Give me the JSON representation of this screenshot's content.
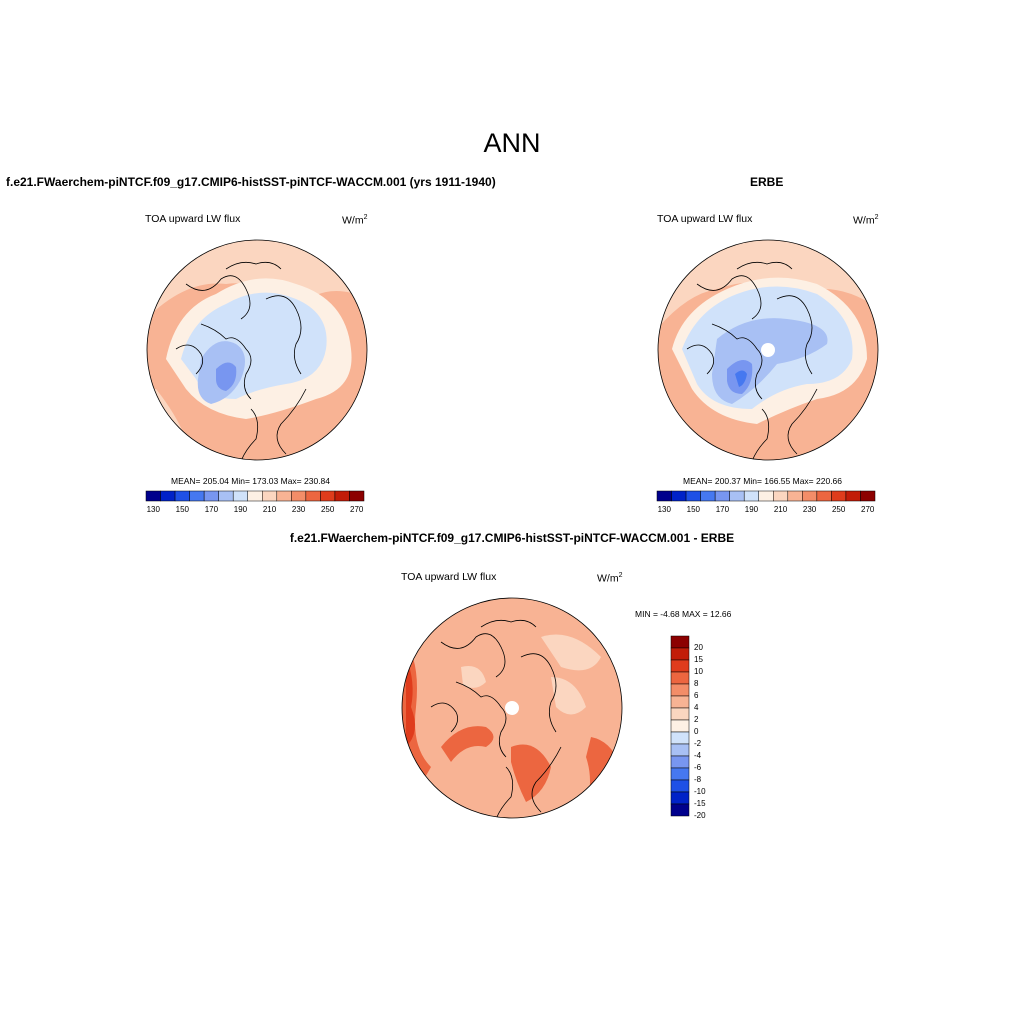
{
  "page": {
    "title": "ANN"
  },
  "panels": {
    "model": {
      "case_title": "f.e21.FWaerchem-piNTCF.f09_g17.CMIP6-histSST-piNTCF-WACCM.001 (yrs 1911-1940)",
      "variable": "TOA upward LW flux",
      "units_base": "W/m",
      "units_exp": "2",
      "stats": "MEAN= 205.04  Min= 173.03  Max= 230.84"
    },
    "obs": {
      "case_title": "ERBE",
      "variable": "TOA upward LW flux",
      "units_base": "W/m",
      "units_exp": "2",
      "stats": "MEAN= 200.37  Min= 166.55  Max= 220.66"
    },
    "diff": {
      "case_title": "f.e21.FWaerchem-piNTCF.f09_g17.CMIP6-histSST-piNTCF-WACCM.001 - ERBE",
      "variable": "TOA upward LW flux",
      "units_base": "W/m",
      "units_exp": "2",
      "stats": "MIN =  -4.68 MAX =  12.66"
    }
  },
  "chart_data": [
    {
      "type": "heatmap",
      "projection": "north-polar-stereographic",
      "colorbar_orientation": "horizontal",
      "colorbar_levels": [
        130,
        140,
        150,
        160,
        170,
        180,
        190,
        200,
        210,
        220,
        230,
        240,
        250,
        260,
        270
      ],
      "colorbar_tick_labels": [
        "130",
        "150",
        "170",
        "190",
        "210",
        "230",
        "250",
        "270"
      ],
      "colorbar_colors": [
        "#00008c",
        "#0022c8",
        "#1e50e6",
        "#4678f0",
        "#7896f0",
        "#a8c0f4",
        "#d0e2fa",
        "#fdf0e4",
        "#fbd6c0",
        "#f8b394",
        "#f38d68",
        "#ec6640",
        "#df3c1c",
        "#c21c08",
        "#8c0000"
      ],
      "mean": 205.04,
      "min": 173.03,
      "max": 230.84
    },
    {
      "type": "heatmap",
      "projection": "north-polar-stereographic",
      "colorbar_orientation": "horizontal",
      "colorbar_levels": [
        130,
        140,
        150,
        160,
        170,
        180,
        190,
        200,
        210,
        220,
        230,
        240,
        250,
        260,
        270
      ],
      "colorbar_tick_labels": [
        "130",
        "150",
        "170",
        "190",
        "210",
        "230",
        "250",
        "270"
      ],
      "colorbar_colors": [
        "#00008c",
        "#0022c8",
        "#1e50e6",
        "#4678f0",
        "#7896f0",
        "#a8c0f4",
        "#d0e2fa",
        "#fdf0e4",
        "#fbd6c0",
        "#f8b394",
        "#f38d68",
        "#ec6640",
        "#df3c1c",
        "#c21c08",
        "#8c0000"
      ],
      "mean": 200.37,
      "min": 166.55,
      "max": 220.66
    },
    {
      "type": "heatmap",
      "projection": "north-polar-stereographic",
      "colorbar_orientation": "vertical",
      "colorbar_levels": [
        -20,
        -15,
        -10,
        -8,
        -6,
        -4,
        -2,
        0,
        2,
        4,
        6,
        8,
        10,
        15,
        20
      ],
      "colorbar_tick_labels": [
        "20",
        "15",
        "10",
        "8",
        "6",
        "4",
        "2",
        "0",
        "-2",
        "-4",
        "-6",
        "-8",
        "-10",
        "-15",
        "-20"
      ],
      "colorbar_colors": [
        "#8c0000",
        "#c21c08",
        "#df3c1c",
        "#ec6640",
        "#f38d68",
        "#f8b394",
        "#fbd6c0",
        "#fdf0e4",
        "#d0e2fa",
        "#a8c0f4",
        "#7896f0",
        "#4678f0",
        "#1e50e6",
        "#0022c8",
        "#00008c"
      ],
      "min": -4.68,
      "max": 12.66
    }
  ]
}
